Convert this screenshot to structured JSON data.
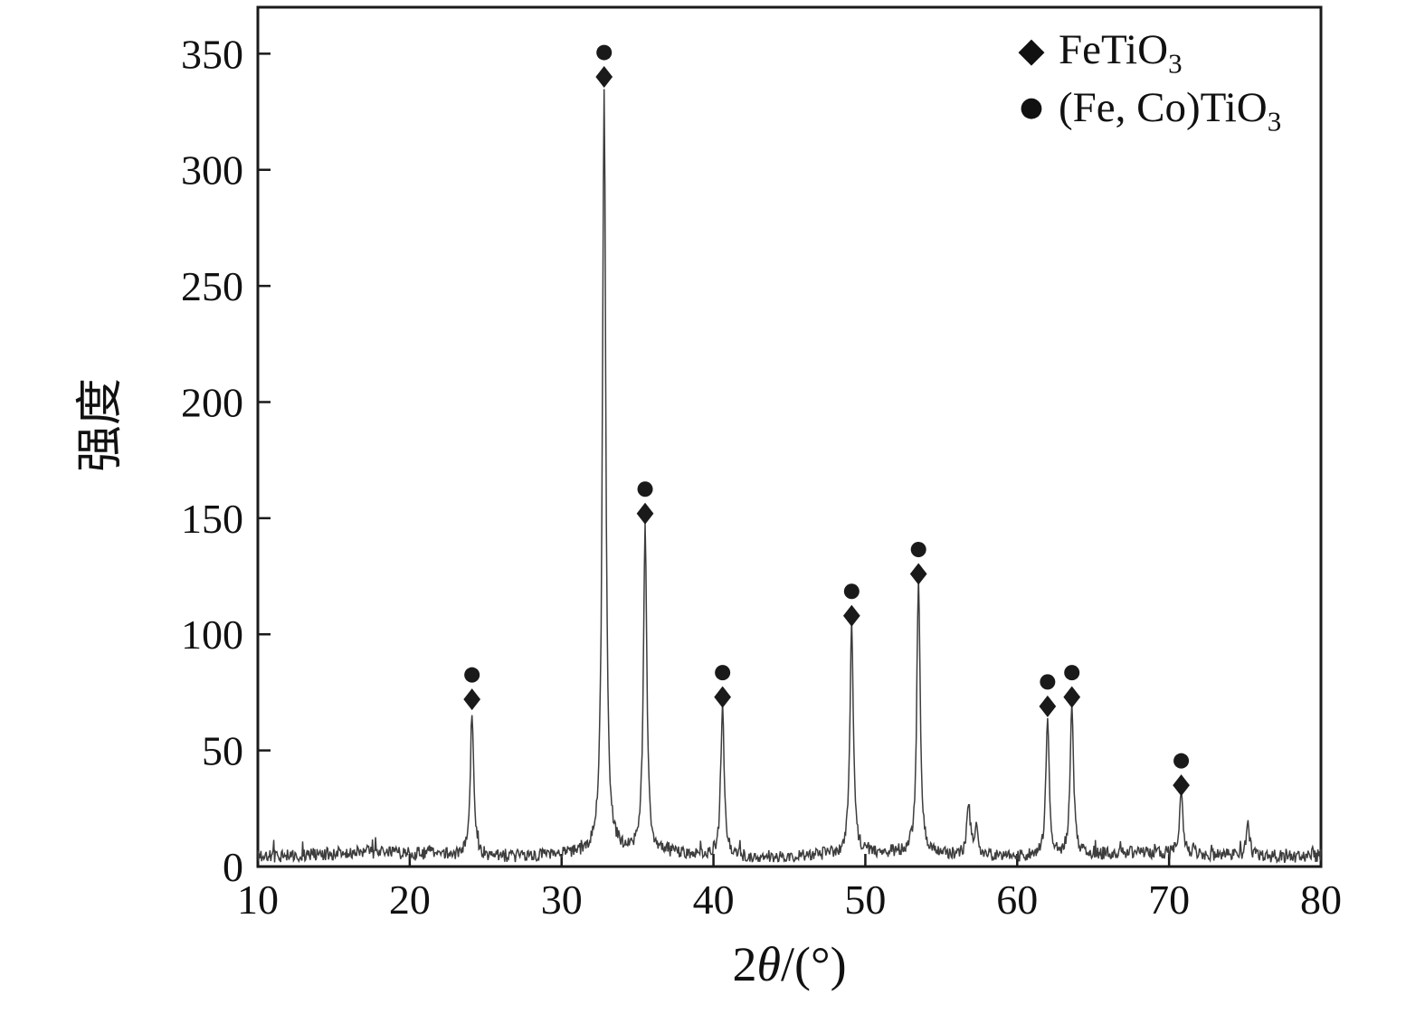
{
  "chart_data": {
    "type": "line",
    "xlabel": "2θ/(°)",
    "xlabel_parts": {
      "num": "2",
      "theta": "θ",
      "rest": "/(°)"
    },
    "ylabel": "强度",
    "xlim": [
      10,
      80
    ],
    "ylim": [
      0,
      370
    ],
    "xticks": [
      10,
      20,
      30,
      40,
      50,
      60,
      70,
      80
    ],
    "yticks": [
      0,
      50,
      100,
      150,
      200,
      250,
      300,
      350
    ],
    "grid": false,
    "line_color": "#3d3d3d",
    "marker_color": "#1a1a1a",
    "axis_color": "#1a1a1a",
    "legend": {
      "position": "top-right",
      "items": [
        {
          "marker": "diamond",
          "glyph": "◆",
          "main": "FeTiO",
          "sub": "3"
        },
        {
          "marker": "circle",
          "glyph": "●",
          "main": "(Fe, Co)TiO",
          "sub": "3"
        }
      ]
    },
    "marker_offsets": {
      "diamond": 9,
      "circle": 19.5
    },
    "peaks": [
      {
        "two_theta": 24.1,
        "intensity": 63,
        "marked": true
      },
      {
        "two_theta": 32.8,
        "intensity": 331,
        "marked": true
      },
      {
        "two_theta": 35.5,
        "intensity": 143,
        "marked": true
      },
      {
        "two_theta": 40.6,
        "intensity": 64,
        "marked": true
      },
      {
        "two_theta": 49.1,
        "intensity": 99,
        "marked": true
      },
      {
        "two_theta": 53.5,
        "intensity": 117,
        "marked": true
      },
      {
        "two_theta": 56.8,
        "intensity": 23,
        "marked": false
      },
      {
        "two_theta": 57.3,
        "intensity": 11,
        "marked": false
      },
      {
        "two_theta": 62.0,
        "intensity": 60,
        "marked": true
      },
      {
        "two_theta": 63.6,
        "intensity": 64,
        "marked": true
      },
      {
        "two_theta": 70.8,
        "intensity": 26,
        "marked": true
      },
      {
        "two_theta": 75.2,
        "intensity": 14,
        "marked": false
      }
    ],
    "noise_baseline": {
      "min": 1,
      "max": 10
    }
  }
}
